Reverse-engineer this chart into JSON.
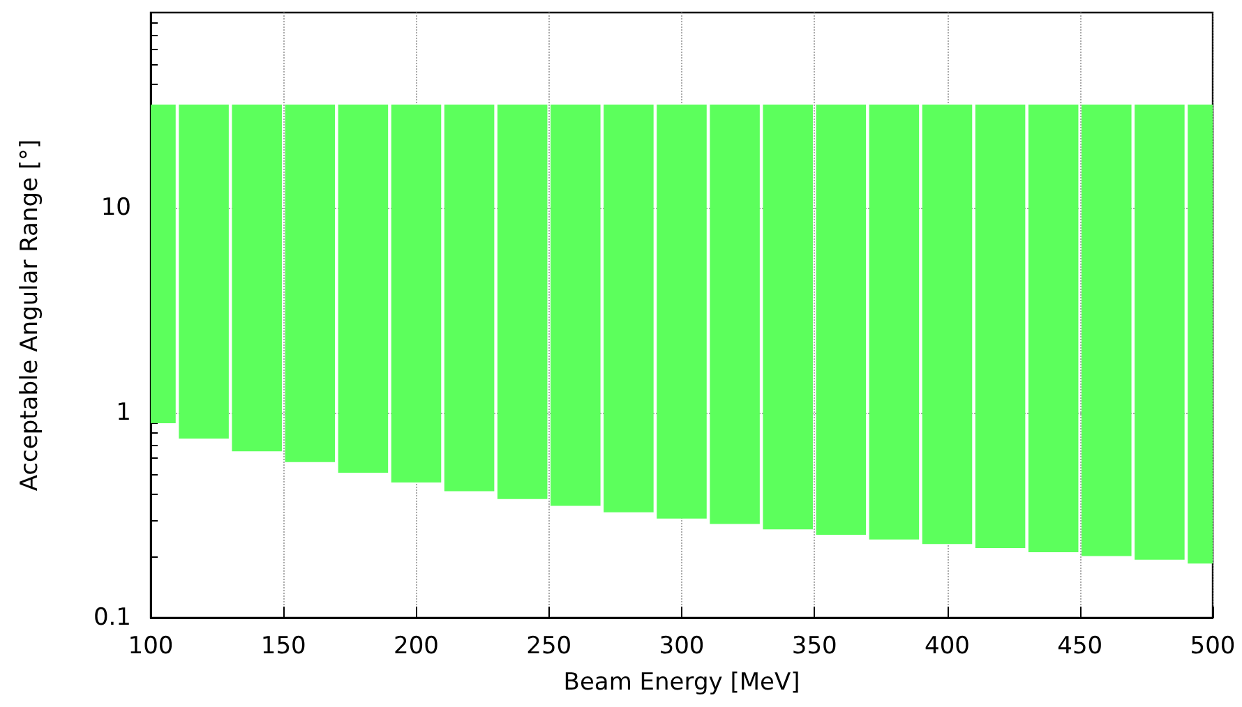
{
  "chart_data": {
    "type": "bar",
    "xlabel": "Beam Energy [MeV]",
    "ylabel": "Acceptable Angular Range [°]",
    "x": [
      100,
      120,
      140,
      160,
      180,
      200,
      220,
      240,
      260,
      280,
      300,
      320,
      340,
      360,
      380,
      400,
      420,
      440,
      460,
      480,
      500
    ],
    "base": [
      0.89,
      0.75,
      0.65,
      0.575,
      0.51,
      0.457,
      0.415,
      0.38,
      0.352,
      0.327,
      0.305,
      0.287,
      0.27,
      0.254,
      0.241,
      0.229,
      0.219,
      0.209,
      0.2,
      0.192,
      0.184
    ],
    "values": [
      31.11,
      31.25,
      31.35,
      31.425,
      31.49,
      31.543,
      31.585,
      31.62,
      31.648,
      31.673,
      31.695,
      31.713,
      31.73,
      31.746,
      31.759,
      31.771,
      31.781,
      31.791,
      31.8,
      31.808,
      31.816
    ],
    "color": "#5cff5c",
    "xlim": [
      100,
      500
    ],
    "xticks": [
      100,
      150,
      200,
      250,
      300,
      350,
      400,
      450,
      500
    ],
    "ylim": [
      0.1,
      90
    ],
    "yticks": [
      0.1,
      1,
      10
    ],
    "log": "y",
    "grid": true
  }
}
